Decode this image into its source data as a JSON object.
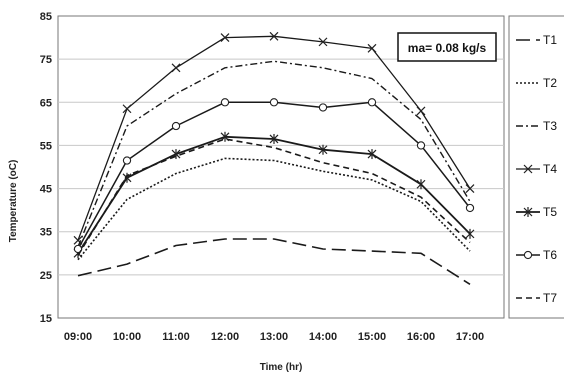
{
  "chart_data": {
    "type": "line",
    "xlabel": "Time (hr)",
    "ylabel": "Temperature (oC)",
    "annotation": "ma= 0.08 kg/s",
    "x": [
      "09:00",
      "10:00",
      "11:00",
      "12:00",
      "13:00",
      "14:00",
      "15:00",
      "16:00",
      "17:00"
    ],
    "ylim": [
      15,
      85
    ],
    "yticks": [
      15,
      25,
      35,
      45,
      55,
      65,
      75,
      85
    ],
    "grid": "horizontal",
    "legend_position": "right-outside",
    "series": [
      {
        "name": "T1",
        "dash": "long-dash",
        "marker": "none",
        "width": 1.6,
        "values": [
          24.8,
          27.5,
          31.8,
          33.3,
          33.3,
          31.0,
          30.5,
          30.0,
          22.8
        ]
      },
      {
        "name": "T2",
        "dash": "dotted",
        "marker": "none",
        "width": 1.6,
        "values": [
          28.5,
          42.5,
          48.5,
          52.0,
          51.5,
          49.0,
          47.0,
          42.0,
          30.5
        ]
      },
      {
        "name": "T3",
        "dash": "dash-dot",
        "marker": "none",
        "width": 1.4,
        "values": [
          31.5,
          59.5,
          67.0,
          73.0,
          74.5,
          73.0,
          70.5,
          61.0,
          42.0
        ]
      },
      {
        "name": "T4",
        "dash": "solid",
        "marker": "x",
        "width": 1.3,
        "values": [
          33.0,
          63.5,
          73.0,
          80.0,
          80.3,
          79.0,
          77.5,
          63.0,
          45.0
        ]
      },
      {
        "name": "T5",
        "dash": "solid",
        "marker": "star",
        "width": 1.8,
        "values": [
          30.0,
          47.5,
          53.0,
          57.0,
          56.5,
          54.0,
          53.0,
          46.0,
          34.5
        ]
      },
      {
        "name": "T6",
        "dash": "solid",
        "marker": "circle",
        "width": 1.5,
        "values": [
          31.0,
          51.5,
          59.5,
          65.0,
          65.0,
          63.8,
          65.0,
          55.0,
          40.5
        ]
      },
      {
        "name": "T7",
        "dash": "short-dash",
        "marker": "none",
        "width": 1.6,
        "values": [
          29.5,
          48.0,
          52.5,
          56.5,
          54.5,
          51.0,
          48.5,
          43.0,
          32.5
        ]
      }
    ]
  }
}
